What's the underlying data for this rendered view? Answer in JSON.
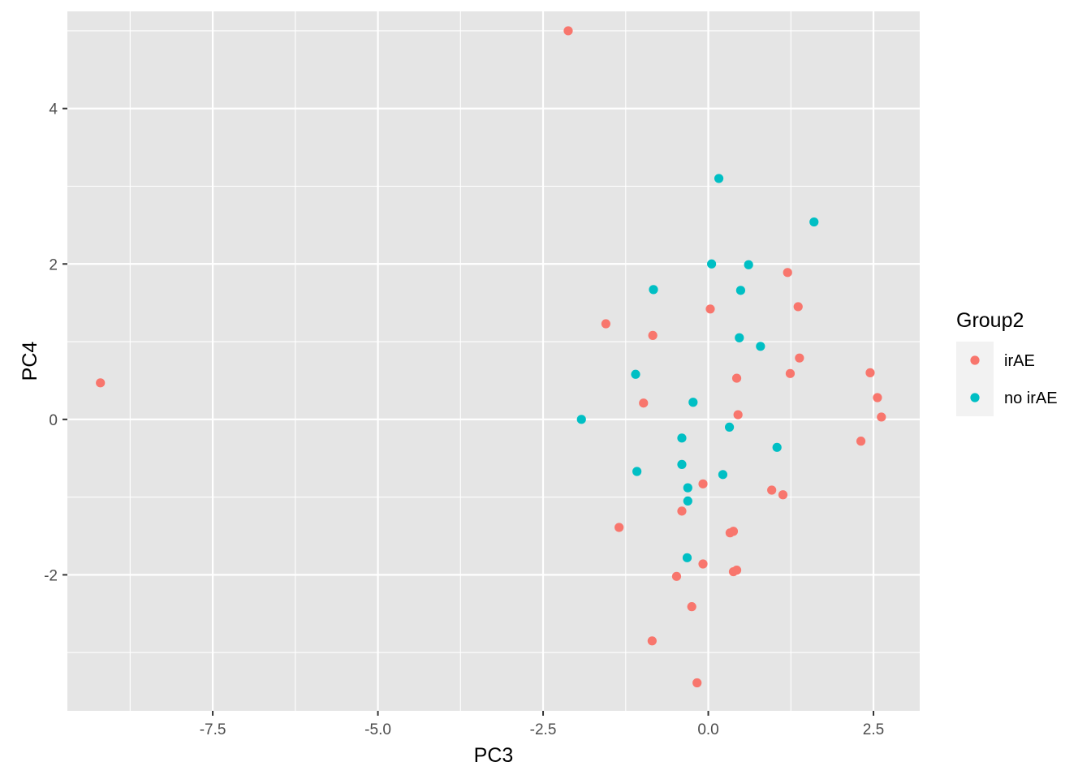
{
  "chart_data": {
    "type": "scatter",
    "title": "",
    "xlabel": "PC3",
    "ylabel": "PC4",
    "xlim": [
      -9.7,
      3.2
    ],
    "ylim": [
      -3.75,
      5.25
    ],
    "x_ticks": [
      -7.5,
      -5.0,
      -2.5,
      0.0,
      2.5
    ],
    "x_tick_labels": [
      "-7.5",
      "-5.0",
      "-2.5",
      "0.0",
      "2.5"
    ],
    "y_ticks": [
      -2,
      0,
      2,
      4
    ],
    "y_tick_labels": [
      "-2",
      "0",
      "2",
      "4"
    ],
    "grid": true,
    "panel_background": "#e5e5e5",
    "legend": {
      "title": "Group2",
      "placement": "right"
    },
    "series": [
      {
        "name": "irAE",
        "color": "#f8766d",
        "points": [
          [
            -9.2,
            0.47
          ],
          [
            -2.12,
            5.0
          ],
          [
            -1.55,
            1.23
          ],
          [
            -0.84,
            1.08
          ],
          [
            -0.98,
            0.21
          ],
          [
            0.03,
            1.42
          ],
          [
            1.2,
            1.89
          ],
          [
            1.36,
            1.45
          ],
          [
            1.38,
            0.79
          ],
          [
            1.24,
            0.59
          ],
          [
            0.43,
            0.53
          ],
          [
            0.45,
            0.06
          ],
          [
            2.45,
            0.6
          ],
          [
            2.56,
            0.28
          ],
          [
            2.62,
            0.03
          ],
          [
            2.31,
            -0.28
          ],
          [
            -0.08,
            -0.83
          ],
          [
            0.96,
            -0.91
          ],
          [
            1.13,
            -0.97
          ],
          [
            -0.4,
            -1.18
          ],
          [
            -1.35,
            -1.39
          ],
          [
            0.33,
            -1.46
          ],
          [
            0.38,
            -1.44
          ],
          [
            -0.08,
            -1.86
          ],
          [
            0.38,
            -1.96
          ],
          [
            0.43,
            -1.94
          ],
          [
            -0.48,
            -2.02
          ],
          [
            -0.25,
            -2.41
          ],
          [
            -0.85,
            -2.85
          ],
          [
            -0.17,
            -3.39
          ]
        ]
      },
      {
        "name": "no irAE",
        "color": "#00bfc4",
        "points": [
          [
            0.16,
            3.1
          ],
          [
            1.6,
            2.54
          ],
          [
            0.05,
            2.0
          ],
          [
            0.61,
            1.99
          ],
          [
            -0.83,
            1.67
          ],
          [
            0.49,
            1.66
          ],
          [
            0.47,
            1.05
          ],
          [
            0.79,
            0.94
          ],
          [
            -1.1,
            0.58
          ],
          [
            -0.23,
            0.22
          ],
          [
            -1.92,
            0.0
          ],
          [
            0.32,
            -0.1
          ],
          [
            -0.4,
            -0.24
          ],
          [
            1.04,
            -0.36
          ],
          [
            -0.4,
            -0.58
          ],
          [
            -1.08,
            -0.67
          ],
          [
            0.22,
            -0.71
          ],
          [
            -0.31,
            -0.88
          ],
          [
            -0.31,
            -1.05
          ],
          [
            -0.32,
            -1.78
          ]
        ]
      }
    ]
  }
}
